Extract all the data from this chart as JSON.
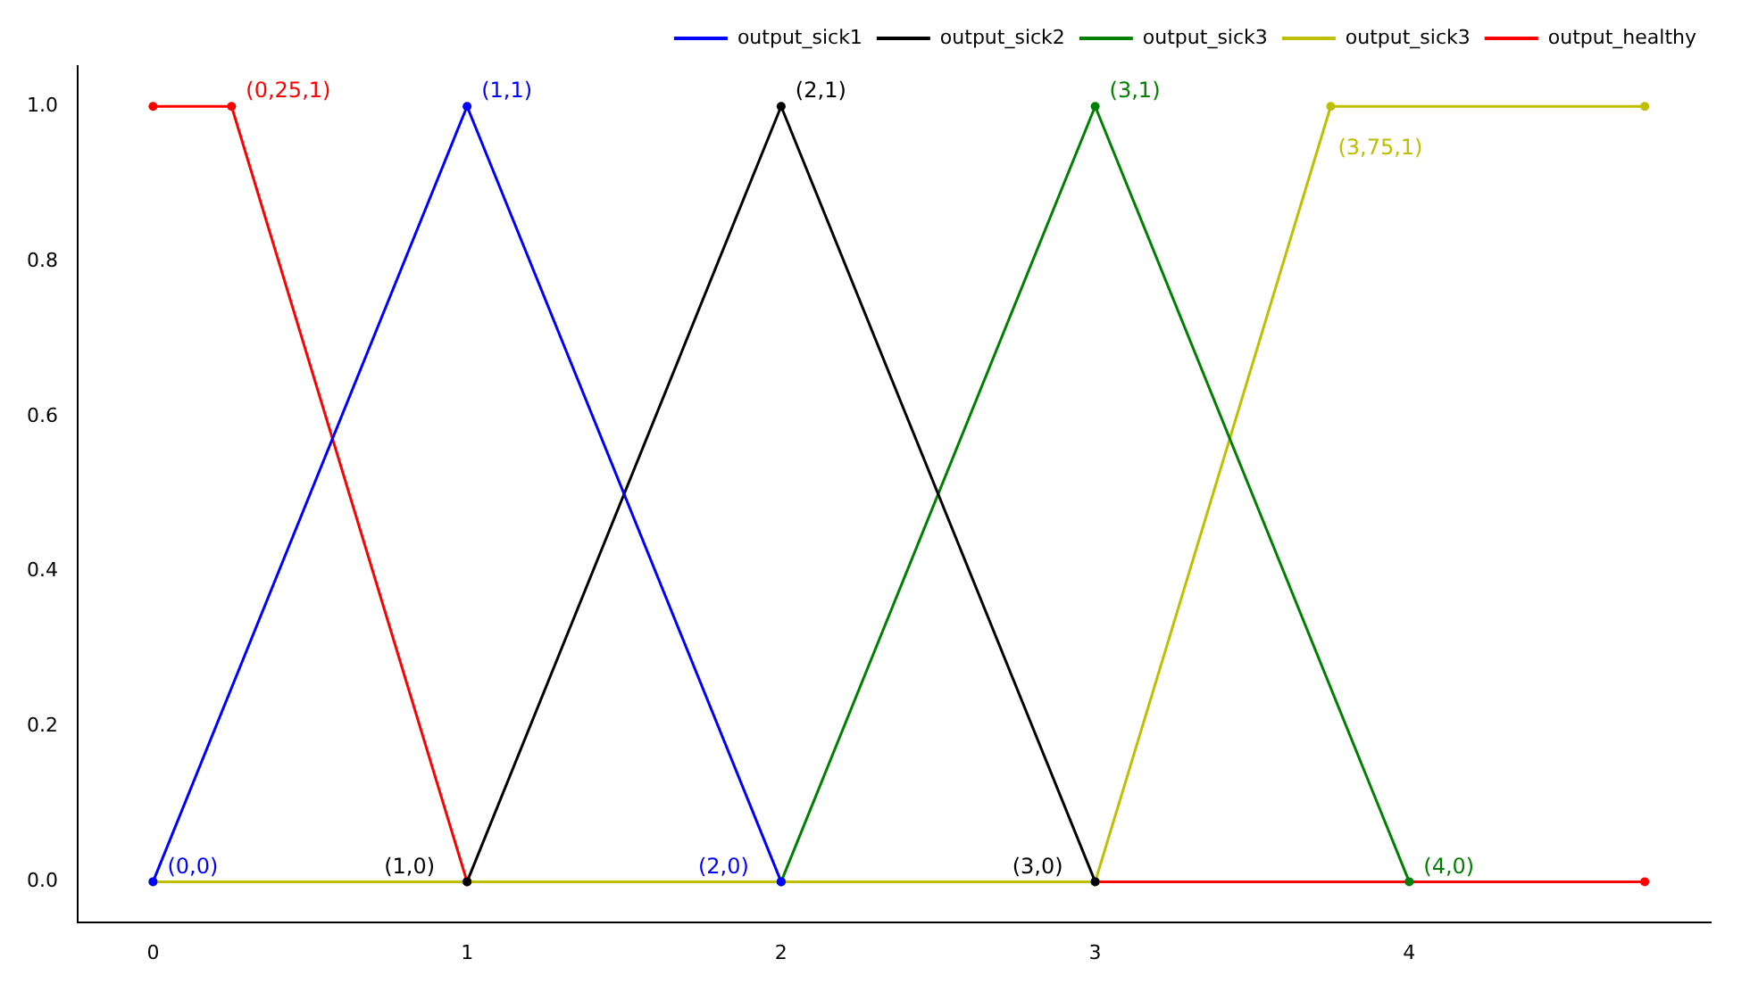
{
  "chart_data": {
    "type": "line",
    "xlim": [
      -0.24,
      4.96
    ],
    "xticks": [
      0,
      1,
      2,
      3,
      4
    ],
    "ylim": [
      -0.052,
      1.052
    ],
    "yticks": [
      {
        "value": 0,
        "label": "0.0"
      },
      {
        "value": 0.2,
        "label": "0.2"
      },
      {
        "value": 0.4,
        "label": "0.4"
      },
      {
        "value": 0.6,
        "label": "0.6"
      },
      {
        "value": 0.8,
        "label": "0.8"
      },
      {
        "value": 1,
        "label": "1.0"
      }
    ],
    "grid": false,
    "legend": "top right",
    "marker": "circle",
    "line_style": "solid",
    "series": [
      {
        "name": "output_sick1",
        "color": "#0000ff",
        "x": [
          0,
          1,
          2
        ],
        "values": [
          0,
          1,
          0
        ]
      },
      {
        "name": "output_sick2",
        "color": "#000000",
        "x": [
          1,
          2,
          3
        ],
        "values": [
          0,
          1,
          0
        ]
      },
      {
        "name": "output_sick3",
        "color": "#008000",
        "x": [
          2,
          3,
          4
        ],
        "values": [
          0,
          1,
          0
        ]
      },
      {
        "name": "output_sick3",
        "color": "#bfbf00",
        "x": [
          0,
          3,
          3.75,
          4.75
        ],
        "values": [
          0,
          0,
          1,
          1
        ]
      },
      {
        "name": "output_healthy",
        "color": "#ff0000",
        "x": [
          0,
          0.25,
          1,
          4.75
        ],
        "values": [
          1,
          1,
          0,
          0
        ]
      }
    ],
    "annotations": [
      {
        "text": "(0,0)",
        "x": 0,
        "y": 0
      },
      {
        "text": "(0,25,1)",
        "x": 0.25,
        "y": 1
      },
      {
        "text": "(1,1)",
        "x": 1,
        "y": 1
      },
      {
        "text": "(2,1)",
        "x": 2,
        "y": 1
      },
      {
        "text": "(3,1)",
        "x": 3,
        "y": 1
      },
      {
        "text": "(3,75,1)",
        "x": 3.75,
        "y": 1
      },
      {
        "text": "(1,0)",
        "x": 1,
        "y": 0
      },
      {
        "text": "(2,0)",
        "x": 2,
        "y": 0
      },
      {
        "text": "(3,0)",
        "x": 3,
        "y": 0
      },
      {
        "text": "(4,0)",
        "x": 4,
        "y": 0
      }
    ]
  }
}
